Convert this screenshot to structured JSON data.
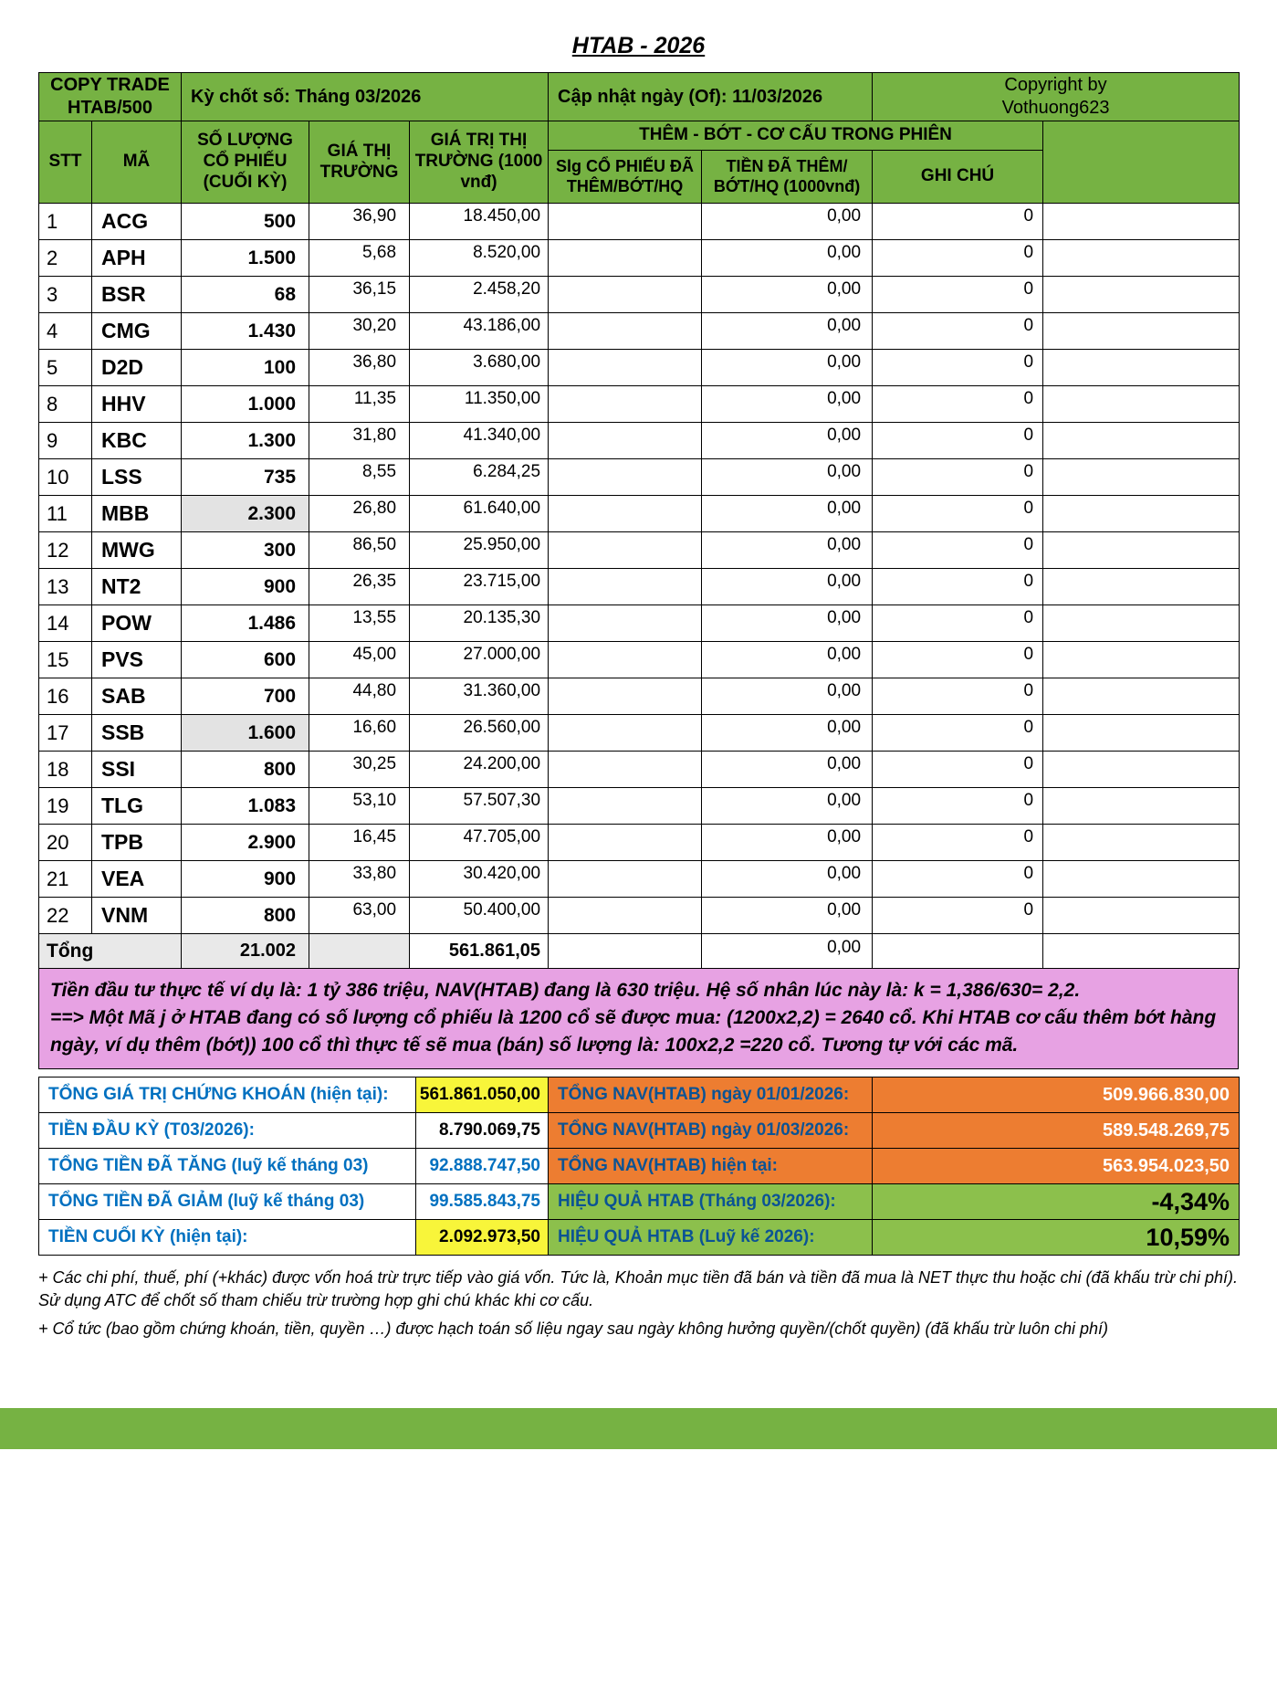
{
  "page": {
    "title": "HTAB - 2026"
  },
  "colors": {
    "header_green": "#76b243",
    "accent_orange": "#ed7d31",
    "accent_green": "#8cc04c",
    "highlight_yellow": "#f8f53a",
    "note_pink": "#e7a2e3",
    "label_blue": "#0070c0"
  },
  "top_band": {
    "copy_trade_line1": "COPY TRADE",
    "copy_trade_line2": "HTAB/500",
    "period": "Kỳ chốt số: Tháng 03/2026",
    "updated": "Cập nhật ngày (Of): 11/03/2026",
    "copyright_line1": "Copyright by",
    "copyright_line2": "Vothuong623"
  },
  "columns": {
    "stt": "STT",
    "ma": "MÃ",
    "so_luong": "SỐ LƯỢNG CỔ PHIẾU (CUỐI KỲ)",
    "gia_thi_truong": "GIÁ THỊ TRƯỜNG",
    "gia_tri_thi_truong": "GIÁ TRỊ THỊ TRƯỜNG (1000 vnđ)",
    "them_bot": "THÊM - BỚT - CƠ CẤU TRONG PHIÊN",
    "slg": "Slg CỔ PHIẾU ĐÃ THÊM/BỚT/HQ",
    "tien": "TIỀN ĐÃ THÊM/ BỚT/HQ (1000vnđ)",
    "ghi_chu": "GHI CHÚ"
  },
  "rows": [
    {
      "stt": "1",
      "ma": "ACG",
      "sl": "500",
      "gia": "36,90",
      "gt": "18.450,00",
      "tien": "0,00",
      "ghi": "0"
    },
    {
      "stt": "2",
      "ma": "APH",
      "sl": "1.500",
      "gia": "5,68",
      "gt": "8.520,00",
      "tien": "0,00",
      "ghi": "0"
    },
    {
      "stt": "3",
      "ma": "BSR",
      "sl": "68",
      "gia": "36,15",
      "gt": "2.458,20",
      "tien": "0,00",
      "ghi": "0"
    },
    {
      "stt": "4",
      "ma": "CMG",
      "sl": "1.430",
      "gia": "30,20",
      "gt": "43.186,00",
      "tien": "0,00",
      "ghi": "0"
    },
    {
      "stt": "5",
      "ma": "D2D",
      "sl": "100",
      "gia": "36,80",
      "gt": "3.680,00",
      "tien": "0,00",
      "ghi": "0"
    },
    {
      "stt": "8",
      "ma": "HHV",
      "sl": "1.000",
      "gia": "11,35",
      "gt": "11.350,00",
      "tien": "0,00",
      "ghi": "0"
    },
    {
      "stt": "9",
      "ma": "KBC",
      "sl": "1.300",
      "gia": "31,80",
      "gt": "41.340,00",
      "tien": "0,00",
      "ghi": "0"
    },
    {
      "stt": "10",
      "ma": "LSS",
      "sl": "735",
      "gia": "8,55",
      "gt": "6.284,25",
      "tien": "0,00",
      "ghi": "0"
    },
    {
      "stt": "11",
      "ma": "MBB",
      "sl": "2.300",
      "sl_shaded": true,
      "gia": "26,80",
      "gt": "61.640,00",
      "tien": "0,00",
      "ghi": "0"
    },
    {
      "stt": "12",
      "ma": "MWG",
      "sl": "300",
      "gia": "86,50",
      "gt": "25.950,00",
      "tien": "0,00",
      "ghi": "0"
    },
    {
      "stt": "13",
      "ma": "NT2",
      "sl": "900",
      "gia": "26,35",
      "gt": "23.715,00",
      "tien": "0,00",
      "ghi": "0"
    },
    {
      "stt": "14",
      "ma": "POW",
      "sl": "1.486",
      "gia": "13,55",
      "gt": "20.135,30",
      "tien": "0,00",
      "ghi": "0"
    },
    {
      "stt": "15",
      "ma": "PVS",
      "sl": "600",
      "gia": "45,00",
      "gt": "27.000,00",
      "tien": "0,00",
      "ghi": "0"
    },
    {
      "stt": "16",
      "ma": "SAB",
      "sl": "700",
      "gia": "44,80",
      "gt": "31.360,00",
      "tien": "0,00",
      "ghi": "0"
    },
    {
      "stt": "17",
      "ma": "SSB",
      "sl": "1.600",
      "sl_shaded": true,
      "gia": "16,60",
      "gt": "26.560,00",
      "tien": "0,00",
      "ghi": "0"
    },
    {
      "stt": "18",
      "ma": "SSI",
      "sl": "800",
      "gia": "30,25",
      "gt": "24.200,00",
      "tien": "0,00",
      "ghi": "0"
    },
    {
      "stt": "19",
      "ma": "TLG",
      "sl": "1.083",
      "gia": "53,10",
      "gt": "57.507,30",
      "tien": "0,00",
      "ghi": "0"
    },
    {
      "stt": "20",
      "ma": "TPB",
      "sl": "2.900",
      "gia": "16,45",
      "gt": "47.705,00",
      "tien": "0,00",
      "ghi": "0"
    },
    {
      "stt": "21",
      "ma": "VEA",
      "sl": "900",
      "gia": "33,80",
      "gt": "30.420,00",
      "tien": "0,00",
      "ghi": "0"
    },
    {
      "stt": "22",
      "ma": "VNM",
      "sl": "800",
      "gia": "63,00",
      "gt": "50.400,00",
      "tien": "0,00",
      "ghi": "0"
    }
  ],
  "total": {
    "label": "Tổng",
    "sl": "21.002",
    "gt": "561.861,05",
    "tien": "0,00"
  },
  "note": {
    "line1": "Tiền đầu tư thực tế ví dụ là: 1 tỷ 386 triệu, NAV(HTAB) đang là 630 triệu. Hệ số nhân lúc này là: k = 1,386/630= 2,2.",
    "line2": "==> Một Mã j ở HTAB đang có số lượng cổ phiếu là 1200 cổ sẽ được mua: (1200x2,2) = 2640 cổ. Khi HTAB cơ cấu thêm bớt hàng ngày, ví dụ thêm (bớt)) 100 cổ thì thực tế sẽ mua (bán) số lượng là: 100x2,2 =220 cổ. Tương tự với các mã."
  },
  "summary": {
    "left": [
      {
        "label": "TỔNG GIÁ TRỊ CHỨNG KHOÁN (hiện tại):",
        "value": "561.861.050,00",
        "style": "yellow"
      },
      {
        "label": "TIỀN ĐẦU KỲ (T03/2026):",
        "value": "8.790.069,75",
        "style": "plain"
      },
      {
        "label": "TỔNG TIỀN ĐÃ TĂNG (luỹ kế tháng 03)",
        "value": "92.888.747,50",
        "style": "blue"
      },
      {
        "label": "TỔNG TIỀN ĐÃ GIẢM (luỹ kế tháng 03)",
        "value": "99.585.843,75",
        "style": "blue"
      },
      {
        "label": "TIỀN CUỐI KỲ (hiện tại):",
        "value": "2.092.973,50",
        "style": "yellow"
      }
    ],
    "right": [
      {
        "label": "TỔNG NAV(HTAB) ngày 01/01/2026:",
        "value": "509.966.830,00",
        "style": "orange"
      },
      {
        "label": "TỔNG NAV(HTAB) ngày 01/03/2026:",
        "value": "589.548.269,75",
        "style": "orange"
      },
      {
        "label": "TỔNG NAV(HTAB) hiện tại:",
        "value": "563.954.023,50",
        "style": "orange"
      },
      {
        "label": "HIỆU QUẢ HTAB (Tháng 03/2026):",
        "value": "-4,34%",
        "style": "green"
      },
      {
        "label": "HIỆU QUẢ HTAB (Luỹ kế 2026):",
        "value": "10,59%",
        "style": "green"
      }
    ]
  },
  "footnotes": [
    "+ Các chi phí, thuế, phí (+khác) được vốn hoá trừ trực tiếp vào giá vốn. Tức là, Khoản mục tiền đã bán và tiền đã mua là NET thực thu hoặc chi (đã khấu trừ chi phí). Sử dụng ATC để chốt số tham chiếu trừ trường hợp ghi chú khác khi cơ cấu.",
    "+ Cổ tức (bao gồm chứng khoán, tiền, quyền …) được hạch toán số liệu ngay sau ngày không hưởng quyền/(chốt quyền) (đã khấu trừ luôn chi phí)"
  ]
}
